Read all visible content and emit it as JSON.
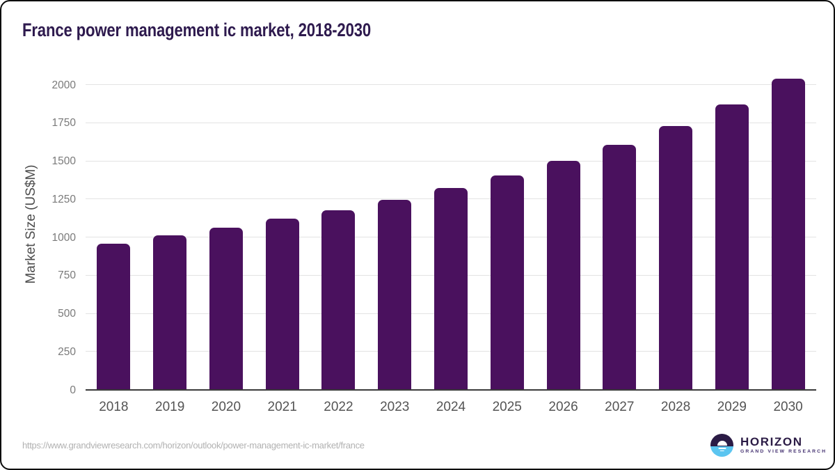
{
  "header": {
    "title": "France power management ic market, 2018-2030"
  },
  "footer": {
    "source_url": "https://www.grandviewresearch.com/horizon/outlook/power-management-ic-market/france",
    "logo": {
      "name": "HORIZON",
      "subtitle": "GRAND VIEW RESEARCH"
    }
  },
  "colors": {
    "bar": "#4a115e",
    "title_text": "#2e1a4e",
    "gridline": "#e3e3e3",
    "axis_line": "#3a3a3a",
    "y_tick_text": "#7a7a7a",
    "x_tick_text": "#545454",
    "url_text": "#b1b1b1",
    "logo_dark": "#2b1b45",
    "logo_blue": "#5bc5f0"
  },
  "chart_data": {
    "type": "bar",
    "title": "France power management ic market, 2018-2030",
    "xlabel": "",
    "ylabel": "Market Size (US$M)",
    "categories": [
      "2018",
      "2019",
      "2020",
      "2021",
      "2022",
      "2023",
      "2024",
      "2025",
      "2026",
      "2027",
      "2028",
      "2029",
      "2030"
    ],
    "values": [
      960,
      1014,
      1062,
      1122,
      1180,
      1247,
      1326,
      1407,
      1502,
      1607,
      1732,
      1873,
      2040
    ],
    "ylim": [
      0,
      2000
    ],
    "ytick_step": 250,
    "grid": true,
    "legend": false,
    "bar_color": "#4a115e"
  }
}
